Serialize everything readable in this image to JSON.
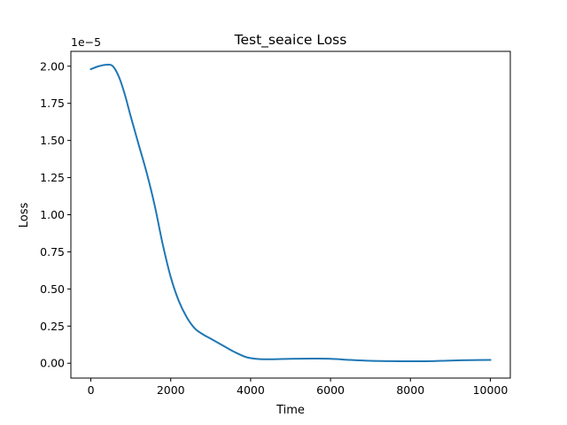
{
  "chart_data": {
    "type": "line",
    "title": "Test_seaice Loss",
    "xlabel": "Time",
    "ylabel": "Loss",
    "y_offset_label": "1e−5",
    "xlim": [
      -500,
      10500
    ],
    "ylim": [
      -0.1,
      2.1
    ],
    "x_ticks": [
      0,
      2000,
      4000,
      6000,
      8000,
      10000
    ],
    "x_tick_labels": [
      "0",
      "2000",
      "4000",
      "6000",
      "8000",
      "10000"
    ],
    "y_ticks": [
      0.0,
      0.25,
      0.5,
      0.75,
      1.0,
      1.25,
      1.5,
      1.75,
      2.0
    ],
    "y_tick_labels": [
      "0.00",
      "0.25",
      "0.50",
      "0.75",
      "1.00",
      "1.25",
      "1.50",
      "1.75",
      "2.00"
    ],
    "grid": false,
    "series": [
      {
        "color": "#1f77b4",
        "x": [
          0,
          200,
          400,
          550,
          700,
          850,
          1000,
          1200,
          1400,
          1600,
          1800,
          2000,
          2200,
          2400,
          2600,
          2800,
          3000,
          3300,
          3600,
          3900,
          4200,
          4500,
          5000,
          5500,
          6000,
          6500,
          7000,
          7500,
          8000,
          8500,
          9000,
          9500,
          10000
        ],
        "y": [
          1.98,
          2.0,
          2.01,
          2.0,
          1.93,
          1.81,
          1.66,
          1.47,
          1.28,
          1.06,
          0.8,
          0.58,
          0.42,
          0.31,
          0.235,
          0.195,
          0.165,
          0.12,
          0.075,
          0.04,
          0.028,
          0.027,
          0.03,
          0.031,
          0.03,
          0.022,
          0.016,
          0.014,
          0.013,
          0.014,
          0.018,
          0.021,
          0.022
        ]
      }
    ]
  }
}
